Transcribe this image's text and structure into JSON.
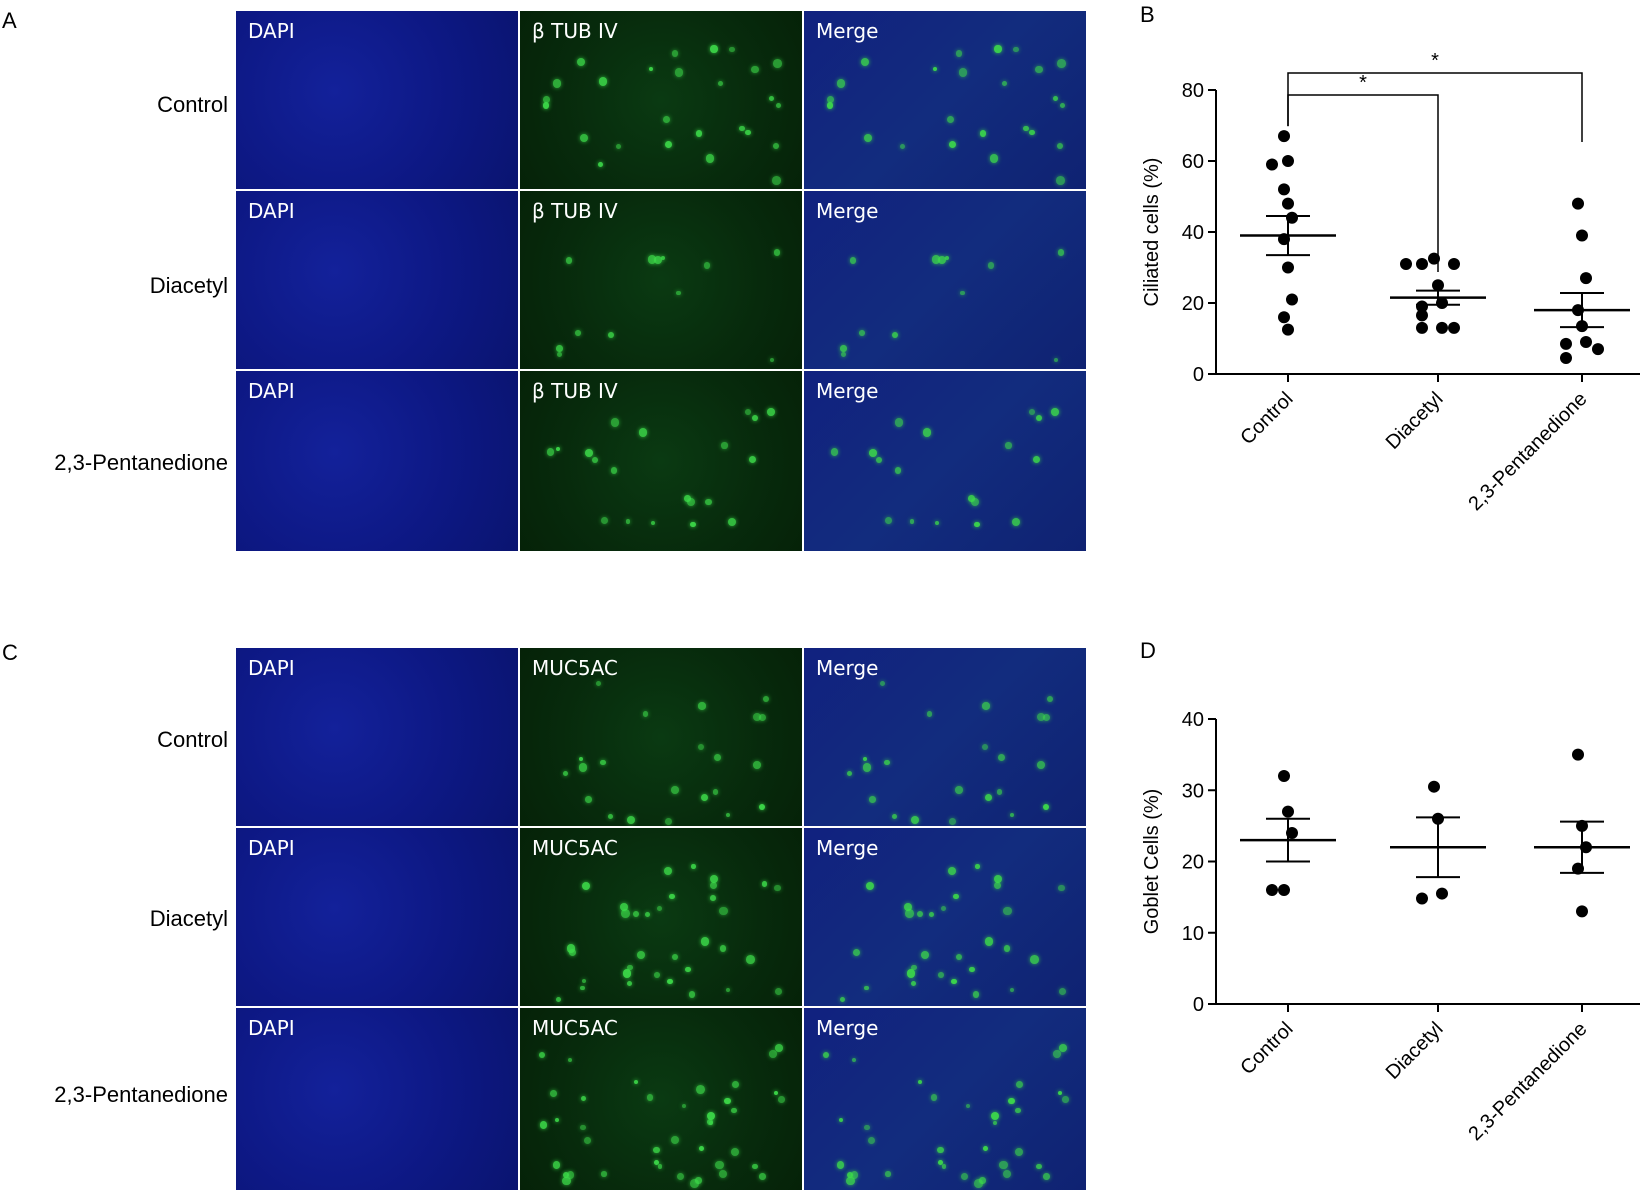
{
  "panels": [
    {
      "letter": "A",
      "rows": [
        "Control",
        "Diacetyl",
        "2,3-Pentanedione"
      ],
      "columns": [
        "DAPI",
        "β TUB IV",
        "Merge"
      ]
    },
    {
      "letter": "C",
      "rows": [
        "Control",
        "Diacetyl",
        "2,3-Pentanedione"
      ],
      "columns": [
        "DAPI",
        "MUC5AC",
        "Merge"
      ]
    }
  ],
  "chart_data": [
    {
      "letter": "B",
      "type": "scatter",
      "ylabel": "Ciliated cells (%)",
      "ylim": [
        0,
        80
      ],
      "yticks": [
        0,
        20,
        40,
        60,
        80
      ],
      "categories": [
        "Control",
        "Diacetyl",
        "2,3-Pentanedione"
      ],
      "points": [
        [
          67,
          60,
          59,
          52,
          48,
          44,
          38,
          30,
          21,
          16,
          12.5
        ],
        [
          31,
          31,
          31,
          32.5,
          25,
          20,
          19,
          16.5,
          13,
          13,
          13
        ],
        [
          48,
          39,
          27,
          18,
          13.5,
          8.5,
          7,
          4.5,
          9
        ]
      ],
      "mean": [
        39,
        21.5,
        18
      ],
      "sem": [
        5.5,
        2,
        4.8
      ],
      "significance": [
        {
          "from": 0,
          "to": 1,
          "label": "*"
        },
        {
          "from": 0,
          "to": 2,
          "label": "*"
        }
      ]
    },
    {
      "letter": "D",
      "type": "scatter",
      "ylabel": "Goblet Cells (%)",
      "ylim": [
        0,
        40
      ],
      "yticks": [
        0,
        10,
        20,
        30,
        40
      ],
      "categories": [
        "Control",
        "Diacetyl",
        "2,3-Pentanedione"
      ],
      "points": [
        [
          32,
          27,
          24,
          16,
          16
        ],
        [
          30.5,
          26,
          15.5,
          14.8
        ],
        [
          35,
          25,
          22,
          19,
          13
        ]
      ],
      "mean": [
        23,
        22,
        22
      ],
      "sem": [
        3,
        4.2,
        3.6
      ],
      "significance": []
    }
  ],
  "colors": {
    "dapi": "#0d1884",
    "green_signal": "#3ddc4a",
    "merge": "#11217f",
    "marker": "#000000"
  }
}
